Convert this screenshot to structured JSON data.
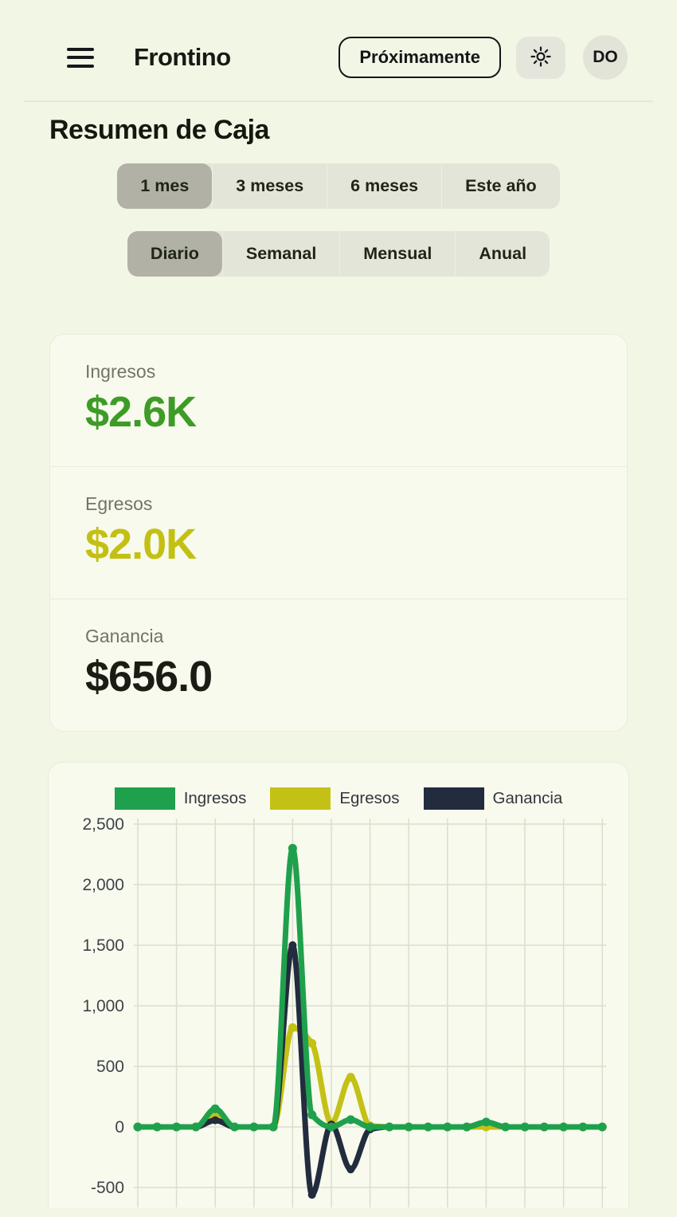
{
  "header": {
    "title": "Frontino",
    "promo_button": "Próximamente",
    "avatar_initials": "DO"
  },
  "page": {
    "title": "Resumen de Caja"
  },
  "filters": {
    "range": {
      "options": [
        "1 mes",
        "3 meses",
        "6 meses",
        "Este año"
      ],
      "selected": "1 mes"
    },
    "granularity": {
      "options": [
        "Diario",
        "Semanal",
        "Mensual",
        "Anual"
      ],
      "selected": "Diario"
    }
  },
  "stats": [
    {
      "label": "Ingresos",
      "value": "$2.6K",
      "color": "#3f9b28"
    },
    {
      "label": "Egresos",
      "value": "$2.0K",
      "color": "#c3c013"
    },
    {
      "label": "Ganancia",
      "value": "$656.0",
      "color": "#1b1d15"
    }
  ],
  "chart_data": {
    "type": "line",
    "title": "",
    "xlabel": "",
    "ylabel": "",
    "x": [
      1,
      2,
      3,
      4,
      5,
      6,
      7,
      8,
      9,
      10,
      11,
      12,
      13,
      14,
      15,
      16,
      17,
      18,
      19,
      20,
      21,
      22,
      23,
      24,
      25
    ],
    "x_tick_labels_visible": false,
    "ylim": [
      -650,
      2550
    ],
    "grid": true,
    "legend_position": "top",
    "yticks": [
      {
        "value": 2500,
        "label": "2,500"
      },
      {
        "value": 2000,
        "label": "2,000"
      },
      {
        "value": 1500,
        "label": "1,500"
      },
      {
        "value": 1000,
        "label": "1,000"
      },
      {
        "value": 500,
        "label": "500"
      },
      {
        "value": 0,
        "label": "0"
      },
      {
        "value": -500,
        "label": "-500"
      }
    ],
    "series": [
      {
        "name": "Ingresos",
        "color": "#1fa04d",
        "values": [
          0,
          0,
          0,
          0,
          150,
          0,
          0,
          0,
          2300,
          100,
          0,
          60,
          0,
          0,
          0,
          0,
          0,
          0,
          40,
          0,
          0,
          0,
          0,
          0,
          0
        ]
      },
      {
        "name": "Egresos",
        "color": "#c4c116",
        "values": [
          0,
          0,
          0,
          0,
          110,
          0,
          0,
          0,
          820,
          690,
          30,
          410,
          10,
          0,
          0,
          0,
          0,
          0,
          0,
          0,
          0,
          0,
          0,
          0,
          0
        ]
      },
      {
        "name": "Ganancia",
        "color": "#222c3e",
        "values": [
          0,
          0,
          0,
          0,
          55,
          0,
          0,
          0,
          1500,
          -560,
          20,
          -350,
          -20,
          0,
          0,
          0,
          0,
          0,
          40,
          0,
          0,
          0,
          0,
          0,
          0
        ]
      }
    ]
  },
  "colors": {
    "page_bg": "#f2f6e4",
    "card_bg": "#f7faed",
    "grid_line": "#dbdecf",
    "axis_text": "#3f434a",
    "selected_segment": "#b1b2a5"
  }
}
